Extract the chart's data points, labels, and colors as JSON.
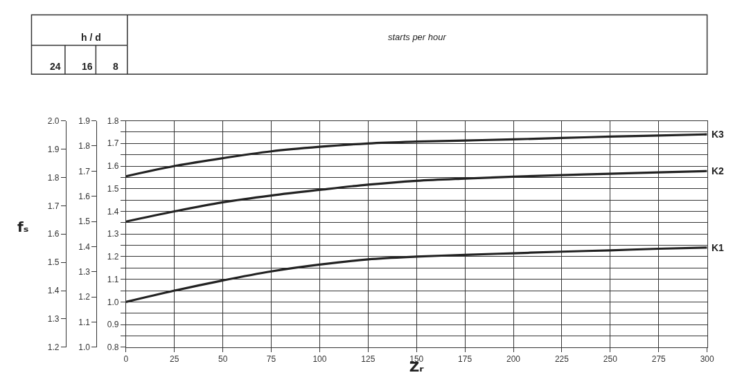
{
  "chart_data": {
    "type": "line",
    "x": [
      0,
      25,
      50,
      75,
      100,
      125,
      150,
      175,
      200,
      225,
      250,
      275,
      300
    ],
    "series": [
      {
        "name": "K3",
        "color": "#222222",
        "axis": "y3",
        "values": [
          1.555,
          1.6,
          1.635,
          1.665,
          1.685,
          1.7,
          1.708,
          1.713,
          1.718,
          1.724,
          1.73,
          1.735,
          1.74
        ]
      },
      {
        "name": "K2",
        "color": "#222222",
        "axis": "y3",
        "values": [
          1.355,
          1.4,
          1.44,
          1.47,
          1.495,
          1.518,
          1.535,
          1.545,
          1.553,
          1.56,
          1.566,
          1.572,
          1.578
        ]
      },
      {
        "name": "K1",
        "color": "#222222",
        "axis": "y3",
        "values": [
          1.0,
          1.05,
          1.095,
          1.135,
          1.165,
          1.188,
          1.2,
          1.208,
          1.215,
          1.222,
          1.228,
          1.235,
          1.24
        ]
      }
    ],
    "xlabel": "Zᵣ",
    "ylabel": "fₛ",
    "annotations": [
      "h / d",
      "24",
      "16",
      "8",
      "starts per hour"
    ],
    "xlim": [
      0,
      300
    ],
    "xticks": [
      0,
      25,
      50,
      75,
      100,
      125,
      150,
      175,
      200,
      225,
      250,
      275,
      300
    ],
    "ylim": [
      1.2,
      2.0
    ],
    "yticks": [
      1.2,
      1.3,
      1.4,
      1.5,
      1.6,
      1.7,
      1.8,
      1.9,
      {
        "value": 2.0,
        "label": "2.0"
      }
    ],
    "y2lim": [
      1.0,
      1.9
    ],
    "y2ticks": [
      {
        "value": 1.0,
        "label": "1.0"
      },
      1.1,
      1.2,
      1.3,
      1.4,
      1.5,
      1.6,
      1.7,
      1.8,
      1.9
    ],
    "y3lim": [
      0.8,
      1.8
    ],
    "y3ticks": [
      0.8,
      {
        "value": 0.85,
        "label": null
      },
      0.9,
      {
        "value": 0.95,
        "label": null
      },
      {
        "value": 1.0,
        "label": "1.0"
      },
      {
        "value": 1.05,
        "label": null
      },
      1.1,
      {
        "value": 1.15,
        "label": null
      },
      1.2,
      {
        "value": 1.25,
        "label": null
      },
      1.3,
      {
        "value": 1.35,
        "label": null
      },
      1.4,
      {
        "value": 1.45,
        "label": null
      },
      1.5,
      {
        "value": 1.55,
        "label": null
      },
      1.6,
      {
        "value": 1.65,
        "label": null
      },
      1.7,
      {
        "value": 1.75,
        "label": null
      },
      1.8
    ],
    "grid": true,
    "line_style": "solid",
    "marker": "none",
    "legend": false
  }
}
